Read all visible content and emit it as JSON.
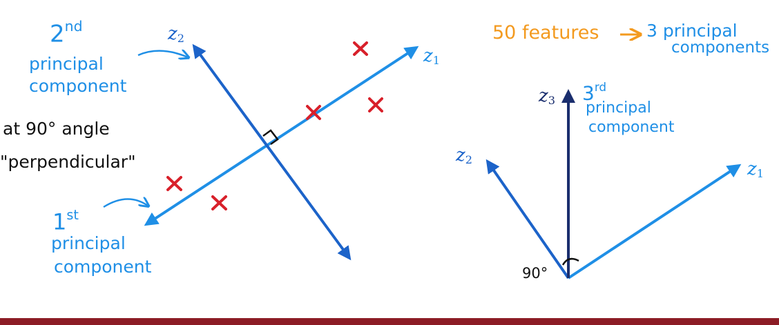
{
  "colors": {
    "light_blue": "#1f8fe6",
    "dark_blue": "#1c63c9",
    "navy": "#1a2e6e",
    "red": "#d8202a",
    "orange": "#f39a1f",
    "black": "#111111",
    "bar": "#8c1c25"
  },
  "left": {
    "axis1": {
      "letter": "z",
      "sub": "1"
    },
    "axis2": {
      "letter": "z",
      "sub": "2"
    },
    "pc2": {
      "num": "2",
      "suffix": "nd",
      "line1": "principal",
      "line2": "component"
    },
    "pc1": {
      "num": "1",
      "suffix": "st",
      "line1": "principal",
      "line2": "component"
    },
    "angle_note": {
      "line1": "at 90° angle",
      "line2": "\"perpendicular\""
    }
  },
  "right": {
    "header": {
      "part1": "50 features",
      "part2": "3 principal",
      "part3": "components"
    },
    "axis1": {
      "letter": "z",
      "sub": "1"
    },
    "axis2": {
      "letter": "z",
      "sub": "2"
    },
    "axis3": {
      "letter": "z",
      "sub": "3"
    },
    "pc3": {
      "num": "3",
      "suffix": "rd",
      "line1": "principal",
      "line2": "component"
    },
    "angle": "90°"
  }
}
